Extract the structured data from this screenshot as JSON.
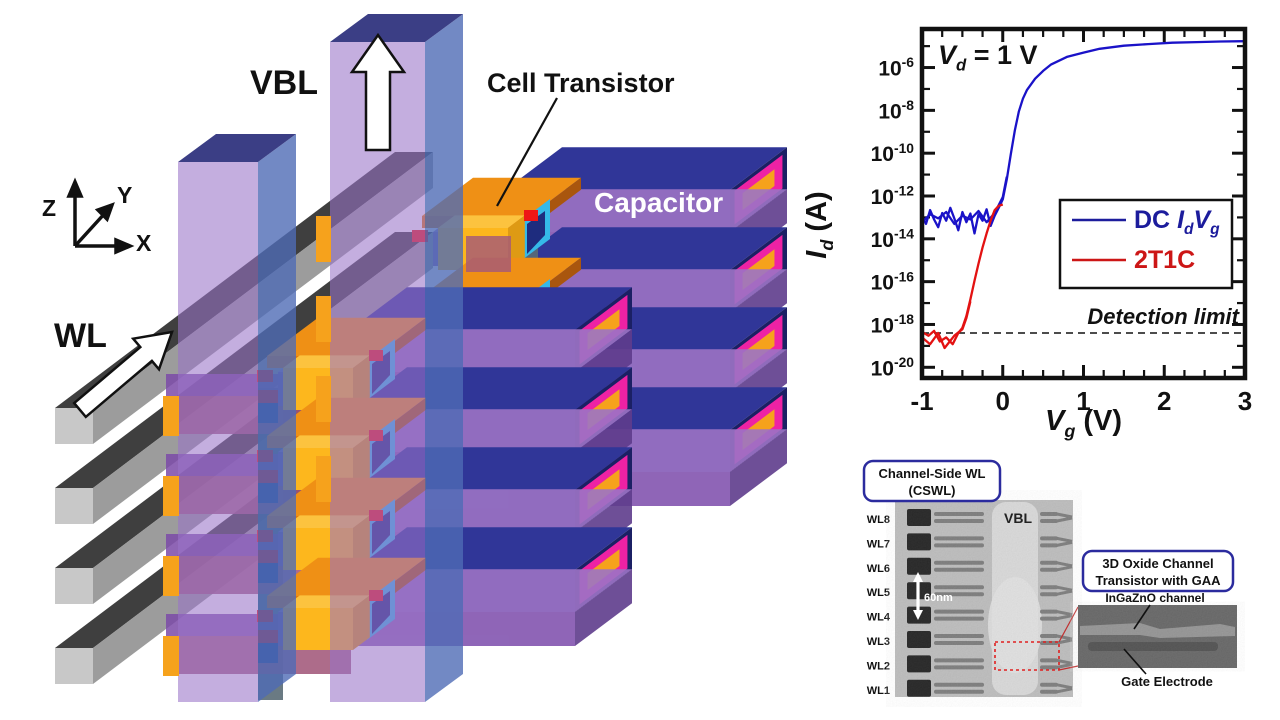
{
  "schematic": {
    "vbl_label": "VBL",
    "wl_label": "WL",
    "cell_transistor_label": "Cell Transistor",
    "capacitor_label": "Capacitor",
    "axis_triad": {
      "z": "Z",
      "y": "Y",
      "x": "X"
    },
    "colors": {
      "capacitor_navy": "#272c82",
      "capacitor_top": "#303698",
      "capacitor_side": "#1b2064",
      "end_magenta": "#ee22a4",
      "end_orange": "#f6a21c",
      "slab_purple": "#8355b0",
      "slab_purple_top": "#9d74c6",
      "slab_purple_side": "#5f3c8c",
      "mauve_layer": "#a2587a",
      "transistor_yellow": "#fdb71d",
      "transistor_orange": "#e07a10",
      "gate_cyan": "#35b9e8",
      "contact_red": "#ee1616",
      "pillar_purple": "#9a74c8",
      "pillar_blue": "#4f6cb5",
      "pillar_top": "#3b3e85",
      "wl_cap_gray": "#c8c8c8",
      "wl_dark_gray": "#3f3f3f",
      "wl_side_gray": "#9c9c9c",
      "teal_strip": "#5a6b75"
    }
  },
  "chart_data": {
    "type": "line",
    "annotation_parts": [
      [
        "V",
        "bi"
      ],
      [
        "d",
        "sub"
      ],
      [
        " = 1 V",
        ""
      ]
    ],
    "xlabel_parts": [
      [
        "V",
        "bi"
      ],
      [
        "g",
        "sub"
      ],
      [
        " (V)",
        ""
      ]
    ],
    "ylabel_parts": [
      [
        "I",
        "bi"
      ],
      [
        "d",
        "sub"
      ],
      [
        " (A)",
        ""
      ]
    ],
    "xlim": [
      -1,
      3
    ],
    "ylim_exponents": [
      -20.5,
      -4.2
    ],
    "xticks": [
      -1,
      0,
      1,
      2,
      3
    ],
    "xminor_step": 0.25,
    "ytick_exponents": [
      -6,
      -8,
      -10,
      -12,
      -14,
      -16,
      -18,
      -20
    ],
    "grid": false,
    "legend_position": "lower right",
    "detection_limit": {
      "label": "Detection limit",
      "value": 4e-19
    },
    "legend": [
      {
        "color": "#1c1c9c",
        "parts": [
          [
            "DC ",
            ""
          ],
          [
            "I",
            "bi"
          ],
          [
            "d",
            "sub"
          ],
          [
            "V",
            "bi"
          ],
          [
            "g",
            "sub"
          ]
        ]
      },
      {
        "color": "#cc1616",
        "parts": [
          [
            "2T1C",
            ""
          ]
        ]
      }
    ],
    "series": [
      {
        "name": "DC IdVg",
        "color": "#1a12c8",
        "points": [
          [
            -1,
            1.2e-13
          ],
          [
            -0.95,
            5e-14
          ],
          [
            -0.9,
            2.2e-13
          ],
          [
            -0.85,
            8e-14
          ],
          [
            -0.8,
            3.5e-14
          ],
          [
            -0.75,
            1.6e-13
          ],
          [
            -0.7,
            7e-14
          ],
          [
            -0.65,
            2.8e-13
          ],
          [
            -0.6,
            9e-14
          ],
          [
            -0.55,
            2.5e-14
          ],
          [
            -0.5,
            1.8e-13
          ],
          [
            -0.45,
            6e-14
          ],
          [
            -0.4,
            1.5e-13
          ],
          [
            -0.35,
            1.8e-14
          ],
          [
            -0.3,
            1.4e-13
          ],
          [
            -0.25,
            7e-14
          ],
          [
            -0.2,
            2.4e-13
          ],
          [
            -0.15,
            4e-14
          ],
          [
            -0.1,
            1.2e-13
          ],
          [
            -0.05,
            2.8e-13
          ],
          [
            0,
            7e-13
          ],
          [
            0.05,
            6e-12
          ],
          [
            0.1,
            9e-11
          ],
          [
            0.15,
            1.2e-09
          ],
          [
            0.2,
            9e-09
          ],
          [
            0.25,
            3.5e-08
          ],
          [
            0.3,
            9e-08
          ],
          [
            0.4,
            3e-07
          ],
          [
            0.5,
            7e-07
          ],
          [
            0.6,
            1.4e-06
          ],
          [
            0.8,
            3.2e-06
          ],
          [
            1,
            5e-06
          ],
          [
            1.2,
            7.5e-06
          ],
          [
            1.5,
            1.05e-05
          ],
          [
            1.8,
            1.25e-05
          ],
          [
            2.1,
            1.45e-05
          ],
          [
            2.4,
            1.55e-05
          ],
          [
            2.7,
            1.65e-05
          ],
          [
            3,
            1.7e-05
          ]
        ],
        "points2": [
          [
            -1,
            6e-14
          ],
          [
            -0.9,
            1.4e-13
          ],
          [
            -0.8,
            9e-14
          ],
          [
            -0.7,
            1.8e-13
          ],
          [
            -0.6,
            5e-14
          ],
          [
            -0.5,
            1.2e-13
          ],
          [
            -0.4,
            8e-14
          ],
          [
            -0.3,
            2e-13
          ],
          [
            -0.2,
            6e-14
          ],
          [
            -0.1,
            1.6e-13
          ],
          [
            0,
            9e-13
          ],
          [
            0.05,
            8e-12
          ]
        ]
      },
      {
        "name": "2T1C",
        "color": "#e31212",
        "points": [
          [
            -1,
            4.5e-19
          ],
          [
            -0.92,
            3e-19
          ],
          [
            -0.85,
            5e-19
          ],
          [
            -0.78,
            1.6e-19
          ],
          [
            -0.7,
            2.5e-19
          ],
          [
            -0.62,
            1.2e-19
          ],
          [
            -0.55,
            4e-19
          ],
          [
            -0.5,
            7e-19
          ],
          [
            -0.45,
            2.5e-18
          ],
          [
            -0.4,
            1.5e-17
          ],
          [
            -0.35,
            1.1e-16
          ],
          [
            -0.3,
            7e-16
          ],
          [
            -0.25,
            4e-15
          ],
          [
            -0.2,
            1.8e-14
          ],
          [
            -0.15,
            7e-14
          ],
          [
            -0.1,
            2.2e-13
          ],
          [
            -0.05,
            3.5e-13
          ],
          [
            0,
            4e-13
          ]
        ],
        "points2": [
          [
            -1,
            2.5e-19
          ],
          [
            -0.9,
            1.2e-19
          ],
          [
            -0.8,
            4e-19
          ],
          [
            -0.72,
            8e-20
          ],
          [
            -0.6,
            3e-19
          ],
          [
            -0.5,
            6e-19
          ],
          [
            -0.45,
            2e-18
          ],
          [
            -0.4,
            1.2e-17
          ]
        ]
      }
    ]
  },
  "sem": {
    "cswl_box_line1": "Channel-Side WL",
    "cswl_box_line2": "(CSWL)",
    "wl_labels": [
      "WL8",
      "WL7",
      "WL6",
      "WL5",
      "WL4",
      "WL3",
      "WL2",
      "WL1"
    ],
    "vbl_label": "VBL",
    "scale_label": "60nm",
    "inset_box_line1": "3D Oxide Channel",
    "inset_box_line2": "Transistor with GAA",
    "channel_label": "InGaZnO channel",
    "gate_label": "Gate Electrode"
  }
}
